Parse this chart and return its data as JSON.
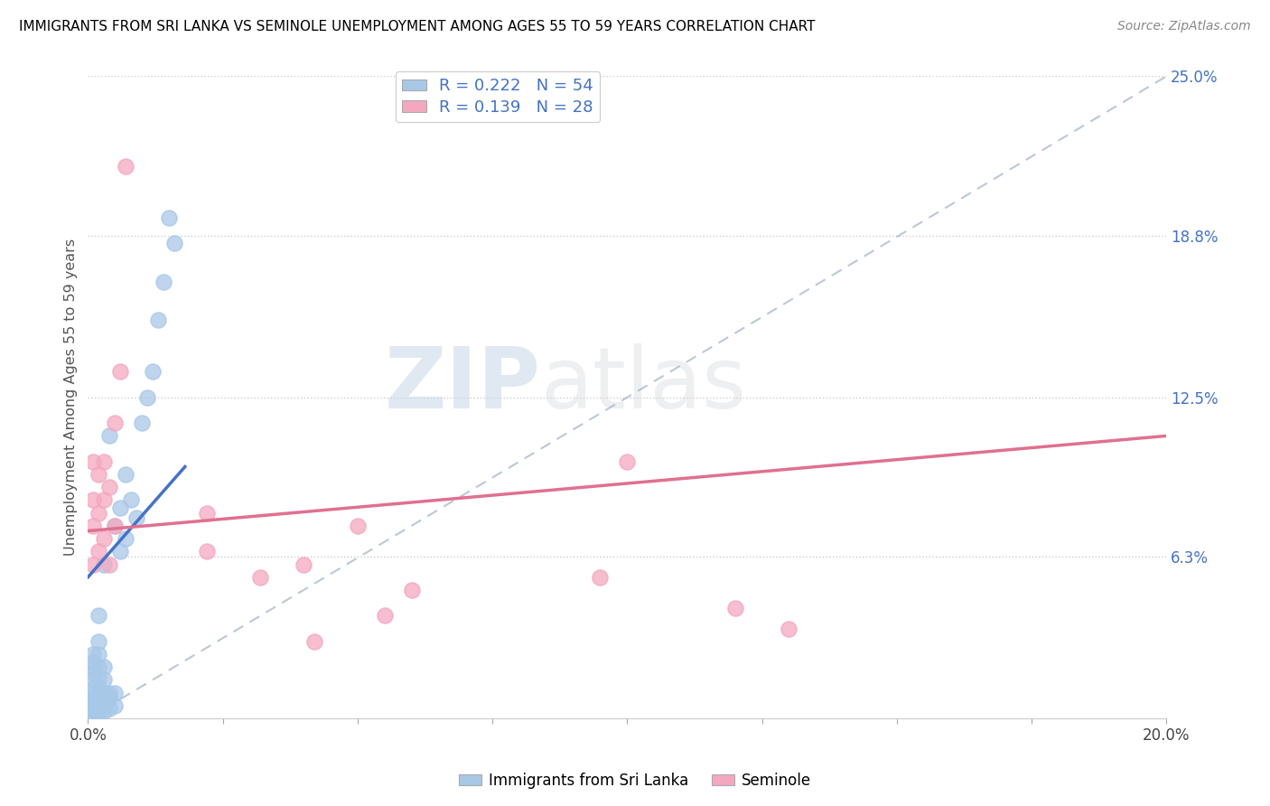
{
  "title": "IMMIGRANTS FROM SRI LANKA VS SEMINOLE UNEMPLOYMENT AMONG AGES 55 TO 59 YEARS CORRELATION CHART",
  "source": "Source: ZipAtlas.com",
  "ylabel": "Unemployment Among Ages 55 to 59 years",
  "xlim": [
    0.0,
    0.2
  ],
  "ylim": [
    0.0,
    0.25
  ],
  "xtick_positions": [
    0.0,
    0.025,
    0.05,
    0.075,
    0.1,
    0.125,
    0.15,
    0.175,
    0.2
  ],
  "xtick_labels": [
    "0.0%",
    "",
    "",
    "",
    "",
    "",
    "",
    "",
    "20.0%"
  ],
  "ytick_right_labels": [
    "25.0%",
    "18.8%",
    "12.5%",
    "6.3%"
  ],
  "ytick_right_positions": [
    0.25,
    0.188,
    0.125,
    0.063
  ],
  "blue_R": 0.222,
  "blue_N": 54,
  "pink_R": 0.139,
  "pink_N": 28,
  "blue_color": "#a8c8e8",
  "pink_color": "#f4a8c0",
  "blue_line_color": "#4472c4",
  "pink_line_color": "#e07090",
  "dashed_line_color": "#a0b0c8",
  "legend_label_blue": "Immigrants from Sri Lanka",
  "legend_label_pink": "Seminole",
  "blue_scatter_x": [
    0.001,
    0.001,
    0.001,
    0.001,
    0.001,
    0.001,
    0.001,
    0.001,
    0.001,
    0.001,
    0.001,
    0.001,
    0.001,
    0.001,
    0.001,
    0.002,
    0.002,
    0.002,
    0.002,
    0.002,
    0.002,
    0.002,
    0.002,
    0.002,
    0.002,
    0.002,
    0.002,
    0.003,
    0.003,
    0.003,
    0.003,
    0.003,
    0.003,
    0.003,
    0.004,
    0.004,
    0.004,
    0.004,
    0.005,
    0.005,
    0.005,
    0.006,
    0.006,
    0.007,
    0.007,
    0.008,
    0.009,
    0.01,
    0.011,
    0.012,
    0.013,
    0.014,
    0.015,
    0.016
  ],
  "blue_scatter_y": [
    0.001,
    0.002,
    0.003,
    0.004,
    0.005,
    0.006,
    0.007,
    0.008,
    0.01,
    0.012,
    0.015,
    0.018,
    0.02,
    0.022,
    0.025,
    0.001,
    0.002,
    0.004,
    0.006,
    0.008,
    0.01,
    0.012,
    0.016,
    0.02,
    0.025,
    0.03,
    0.04,
    0.003,
    0.005,
    0.008,
    0.01,
    0.015,
    0.02,
    0.06,
    0.004,
    0.008,
    0.01,
    0.11,
    0.005,
    0.01,
    0.075,
    0.065,
    0.082,
    0.07,
    0.095,
    0.085,
    0.078,
    0.115,
    0.125,
    0.135,
    0.155,
    0.17,
    0.195,
    0.185
  ],
  "pink_scatter_x": [
    0.001,
    0.001,
    0.001,
    0.001,
    0.002,
    0.002,
    0.002,
    0.003,
    0.003,
    0.003,
    0.004,
    0.004,
    0.005,
    0.005,
    0.006,
    0.007,
    0.022,
    0.022,
    0.032,
    0.04,
    0.042,
    0.05,
    0.055,
    0.06,
    0.095,
    0.1,
    0.12,
    0.13
  ],
  "pink_scatter_y": [
    0.06,
    0.075,
    0.085,
    0.1,
    0.065,
    0.08,
    0.095,
    0.07,
    0.085,
    0.1,
    0.06,
    0.09,
    0.075,
    0.115,
    0.135,
    0.215,
    0.065,
    0.08,
    0.055,
    0.06,
    0.03,
    0.075,
    0.04,
    0.05,
    0.055,
    0.1,
    0.043,
    0.035
  ],
  "blue_line_x": [
    0.0,
    0.018
  ],
  "blue_line_y": [
    0.055,
    0.098
  ],
  "pink_line_x": [
    0.0,
    0.2
  ],
  "pink_line_y": [
    0.073,
    0.11
  ]
}
